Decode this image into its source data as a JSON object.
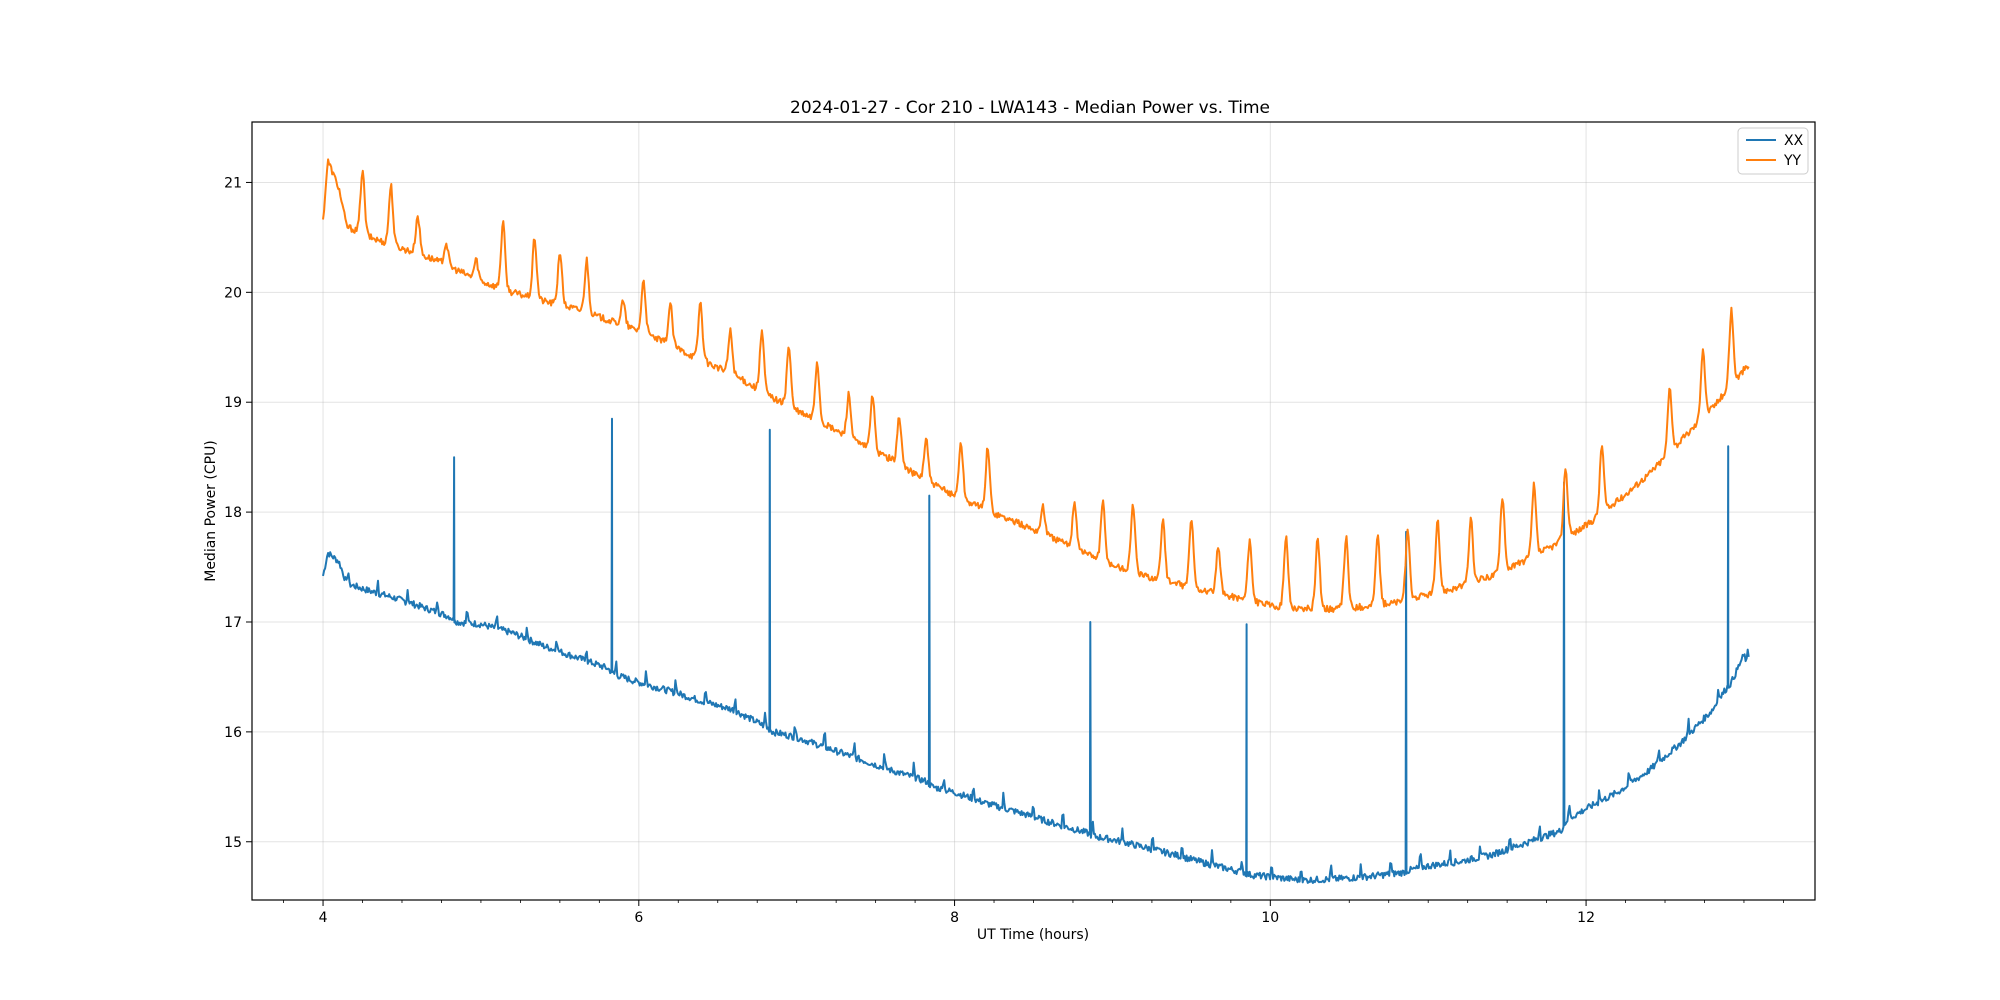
{
  "chart_data": {
    "type": "line",
    "title": "2024-01-27 - Cor 210 - LWA143 - Median Power vs. Time",
    "xlabel": "UT Time (hours)",
    "ylabel": "Median Power (CPU)",
    "xlim": [
      3.55,
      13.45
    ],
    "ylim": [
      14.47,
      21.55
    ],
    "xticks": [
      4,
      6,
      8,
      10,
      12
    ],
    "xtick_labels": [
      "4",
      "6",
      "8",
      "10",
      "12"
    ],
    "yticks": [
      15,
      16,
      17,
      18,
      19,
      20,
      21
    ],
    "ytick_labels": [
      "15",
      "16",
      "17",
      "18",
      "19",
      "20",
      "21"
    ],
    "grid": true,
    "legend_position": "upper-right",
    "series": [
      {
        "name": "XX",
        "color": "#1f77b4",
        "points": [
          [
            4.0,
            17.42
          ],
          [
            4.03,
            17.63
          ],
          [
            4.1,
            17.55
          ],
          [
            4.15,
            17.35
          ],
          [
            4.3,
            17.28
          ],
          [
            4.45,
            17.22
          ],
          [
            4.6,
            17.15
          ],
          [
            4.8,
            17.05
          ],
          [
            4.83,
            18.5
          ],
          [
            4.85,
            17.0
          ],
          [
            5.0,
            16.98
          ],
          [
            5.2,
            16.9
          ],
          [
            5.4,
            16.78
          ],
          [
            5.6,
            16.68
          ],
          [
            5.8,
            16.58
          ],
          [
            5.83,
            18.85
          ],
          [
            5.85,
            16.52
          ],
          [
            6.0,
            16.45
          ],
          [
            6.2,
            16.37
          ],
          [
            6.4,
            16.28
          ],
          [
            6.6,
            16.2
          ],
          [
            6.8,
            16.05
          ],
          [
            6.83,
            18.75
          ],
          [
            6.85,
            16.0
          ],
          [
            7.0,
            15.95
          ],
          [
            7.2,
            15.85
          ],
          [
            7.4,
            15.75
          ],
          [
            7.6,
            15.65
          ],
          [
            7.82,
            15.55
          ],
          [
            7.84,
            18.15
          ],
          [
            7.86,
            15.5
          ],
          [
            8.0,
            15.45
          ],
          [
            8.2,
            15.35
          ],
          [
            8.4,
            15.27
          ],
          [
            8.6,
            15.18
          ],
          [
            8.84,
            15.08
          ],
          [
            8.86,
            17.0
          ],
          [
            8.88,
            15.05
          ],
          [
            9.0,
            15.02
          ],
          [
            9.2,
            14.95
          ],
          [
            9.4,
            14.88
          ],
          [
            9.6,
            14.8
          ],
          [
            9.83,
            14.72
          ],
          [
            9.85,
            16.98
          ],
          [
            9.87,
            14.7
          ],
          [
            10.0,
            14.68
          ],
          [
            10.2,
            14.65
          ],
          [
            10.4,
            14.66
          ],
          [
            10.6,
            14.68
          ],
          [
            10.84,
            14.72
          ],
          [
            10.86,
            17.82
          ],
          [
            10.88,
            14.74
          ],
          [
            11.0,
            14.78
          ],
          [
            11.2,
            14.82
          ],
          [
            11.4,
            14.88
          ],
          [
            11.6,
            14.98
          ],
          [
            11.84,
            15.1
          ],
          [
            11.86,
            18.27
          ],
          [
            11.88,
            15.2
          ],
          [
            12.0,
            15.3
          ],
          [
            12.2,
            15.45
          ],
          [
            12.4,
            15.65
          ],
          [
            12.6,
            15.9
          ],
          [
            12.8,
            16.2
          ],
          [
            12.88,
            16.38
          ],
          [
            12.9,
            18.6
          ],
          [
            12.92,
            16.45
          ],
          [
            13.0,
            16.7
          ],
          [
            13.03,
            16.6
          ]
        ]
      },
      {
        "name": "YY",
        "color": "#ff7f0e",
        "points": [
          [
            4.0,
            20.65
          ],
          [
            4.03,
            21.2
          ],
          [
            4.1,
            20.95
          ],
          [
            4.15,
            20.6
          ],
          [
            4.3,
            20.5
          ],
          [
            4.5,
            20.4
          ],
          [
            4.7,
            20.3
          ],
          [
            5.0,
            20.1
          ],
          [
            5.2,
            20.0
          ],
          [
            5.4,
            19.92
          ],
          [
            5.6,
            19.85
          ],
          [
            5.8,
            19.75
          ],
          [
            6.0,
            19.65
          ],
          [
            6.2,
            19.52
          ],
          [
            6.4,
            19.38
          ],
          [
            6.6,
            19.25
          ],
          [
            6.8,
            19.08
          ],
          [
            7.0,
            18.92
          ],
          [
            7.2,
            18.78
          ],
          [
            7.4,
            18.62
          ],
          [
            7.6,
            18.48
          ],
          [
            7.8,
            18.3
          ],
          [
            8.0,
            18.15
          ],
          [
            8.2,
            18.02
          ],
          [
            8.4,
            17.9
          ],
          [
            8.6,
            17.78
          ],
          [
            8.8,
            17.65
          ],
          [
            9.0,
            17.52
          ],
          [
            9.2,
            17.42
          ],
          [
            9.4,
            17.35
          ],
          [
            9.6,
            17.28
          ],
          [
            9.8,
            17.22
          ],
          [
            10.0,
            17.15
          ],
          [
            10.2,
            17.12
          ],
          [
            10.4,
            17.12
          ],
          [
            10.6,
            17.14
          ],
          [
            10.8,
            17.18
          ],
          [
            11.0,
            17.25
          ],
          [
            11.2,
            17.32
          ],
          [
            11.4,
            17.42
          ],
          [
            11.6,
            17.55
          ],
          [
            11.8,
            17.7
          ],
          [
            12.0,
            17.88
          ],
          [
            12.2,
            18.1
          ],
          [
            12.4,
            18.35
          ],
          [
            12.6,
            18.65
          ],
          [
            12.8,
            18.95
          ],
          [
            12.95,
            19.2
          ],
          [
            13.0,
            19.3
          ],
          [
            13.03,
            19.32
          ]
        ],
        "peaks": [
          [
            4.25,
            21.12
          ],
          [
            4.43,
            20.98
          ],
          [
            4.6,
            20.7
          ],
          [
            4.78,
            20.45
          ],
          [
            4.97,
            20.3
          ],
          [
            5.14,
            20.65
          ],
          [
            5.34,
            20.5
          ],
          [
            5.5,
            20.38
          ],
          [
            5.67,
            20.3
          ],
          [
            5.9,
            19.92
          ],
          [
            6.03,
            20.12
          ],
          [
            6.2,
            19.9
          ],
          [
            6.39,
            19.92
          ],
          [
            6.58,
            19.65
          ],
          [
            6.78,
            19.65
          ],
          [
            6.95,
            19.52
          ],
          [
            7.13,
            19.38
          ],
          [
            7.33,
            19.08
          ],
          [
            7.48,
            19.08
          ],
          [
            7.65,
            18.88
          ],
          [
            7.82,
            18.68
          ],
          [
            8.04,
            18.65
          ],
          [
            8.21,
            18.6
          ],
          [
            8.56,
            18.05
          ],
          [
            8.76,
            18.1
          ],
          [
            8.94,
            18.1
          ],
          [
            9.13,
            18.1
          ],
          [
            9.32,
            17.95
          ],
          [
            9.5,
            17.95
          ],
          [
            9.67,
            17.68
          ],
          [
            9.87,
            17.75
          ],
          [
            10.1,
            17.78
          ],
          [
            10.3,
            17.78
          ],
          [
            10.48,
            17.78
          ],
          [
            10.68,
            17.8
          ],
          [
            10.87,
            17.82
          ],
          [
            11.06,
            17.92
          ],
          [
            11.27,
            17.95
          ],
          [
            11.47,
            18.15
          ],
          [
            11.67,
            18.25
          ],
          [
            11.87,
            18.42
          ],
          [
            12.1,
            18.62
          ],
          [
            12.53,
            19.15
          ],
          [
            12.74,
            19.5
          ],
          [
            12.92,
            19.85
          ]
        ]
      }
    ]
  }
}
